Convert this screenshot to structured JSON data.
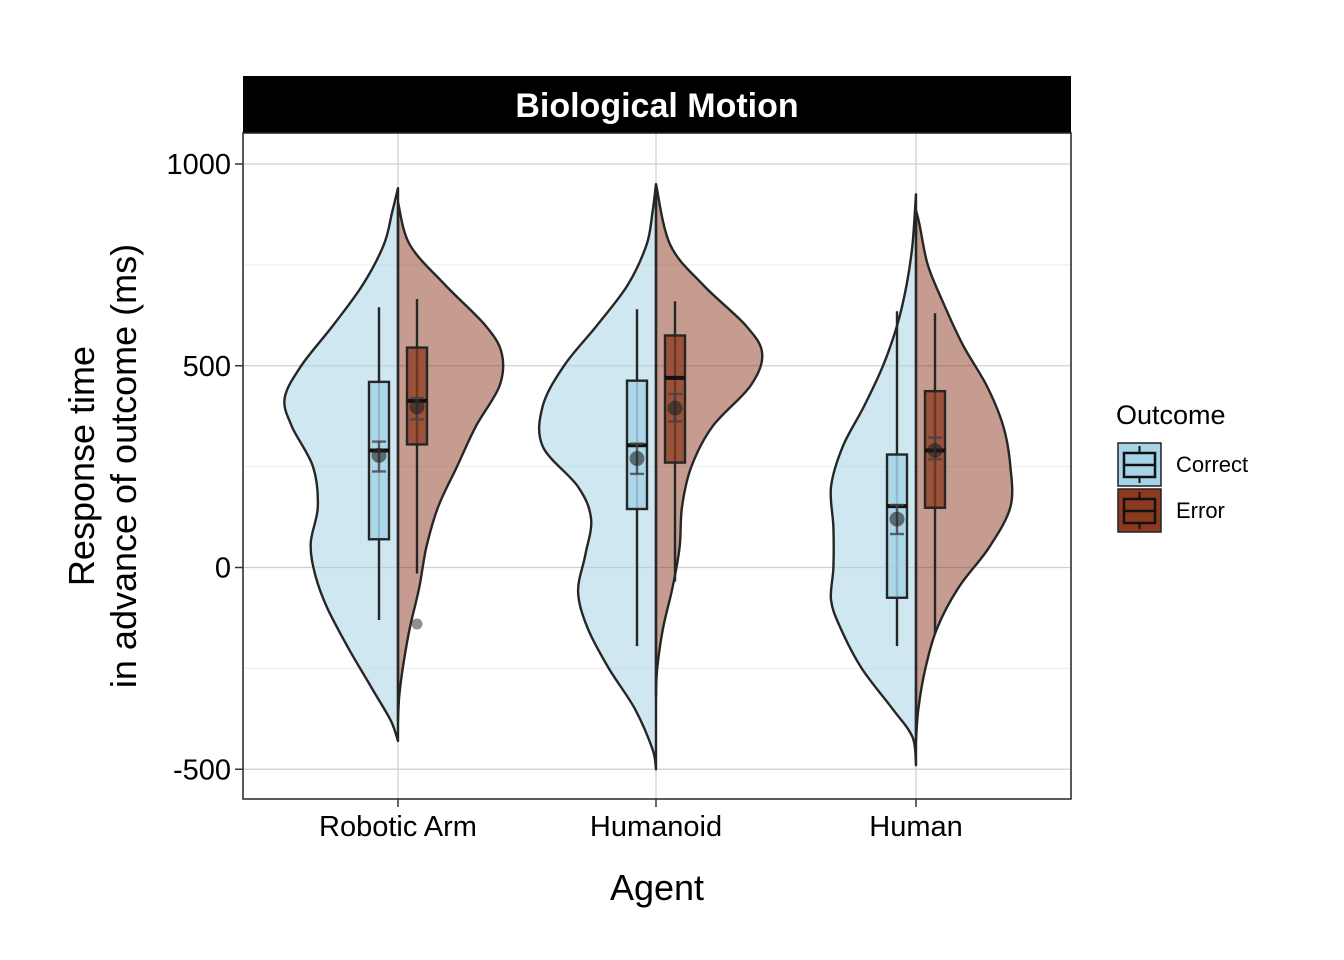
{
  "chart_data": {
    "type": "violin",
    "facet_title": "Biological Motion",
    "xlabel": "Agent",
    "ylabel_lines": [
      "Response time",
      "in advance of outcome (ms)"
    ],
    "ylim": [
      -560,
      1070
    ],
    "y_ticks": [
      -500,
      0,
      500,
      1000
    ],
    "y_tick_labels": [
      "-500",
      "0",
      "500",
      "1000"
    ],
    "categories": [
      "Robotic Arm",
      "Humanoid",
      "Human"
    ],
    "grid": true,
    "legend": {
      "title": "Outcome",
      "placement": "right",
      "entries": [
        "Correct",
        "Error"
      ]
    },
    "colors": {
      "Correct": "#a6d4e6",
      "Error": "#8b3a1f",
      "panel_border": "#222222",
      "grid": "#cccccc",
      "strip": "#000000"
    },
    "series": [
      {
        "name": "Correct",
        "side": "left",
        "groups": [
          {
            "category": "Robotic Arm",
            "density": [
              [
                -430,
                0.0
              ],
              [
                -380,
                0.06
              ],
              [
                -300,
                0.22
              ],
              [
                -200,
                0.42
              ],
              [
                -100,
                0.6
              ],
              [
                -20,
                0.7
              ],
              [
                60,
                0.74
              ],
              [
                150,
                0.68
              ],
              [
                250,
                0.72
              ],
              [
                350,
                0.9
              ],
              [
                420,
                0.96
              ],
              [
                500,
                0.82
              ],
              [
                600,
                0.55
              ],
              [
                700,
                0.3
              ],
              [
                800,
                0.12
              ],
              [
                880,
                0.05
              ],
              [
                940,
                0.0
              ]
            ],
            "box": {
              "q1": 70,
              "median": 290,
              "q3": 460,
              "lower": -130,
              "upper": 645
            },
            "mean": 278,
            "ci": [
              238,
              312
            ],
            "outliers": []
          },
          {
            "category": "Humanoid",
            "density": [
              [
                -500,
                0.0
              ],
              [
                -450,
                0.03
              ],
              [
                -350,
                0.18
              ],
              [
                -250,
                0.4
              ],
              [
                -150,
                0.58
              ],
              [
                -60,
                0.66
              ],
              [
                30,
                0.6
              ],
              [
                120,
                0.55
              ],
              [
                200,
                0.66
              ],
              [
                300,
                0.96
              ],
              [
                400,
                0.96
              ],
              [
                500,
                0.78
              ],
              [
                600,
                0.5
              ],
              [
                700,
                0.24
              ],
              [
                800,
                0.08
              ],
              [
                880,
                0.03
              ],
              [
                950,
                0.0
              ]
            ],
            "box": {
              "q1": 145,
              "median": 303,
              "q3": 463,
              "lower": -195,
              "upper": 640
            },
            "mean": 270,
            "ci": [
              232,
              307
            ],
            "outliers": []
          },
          {
            "category": "Human",
            "density": [
              [
                -490,
                0.0
              ],
              [
                -420,
                0.03
              ],
              [
                -350,
                0.2
              ],
              [
                -250,
                0.46
              ],
              [
                -150,
                0.64
              ],
              [
                -80,
                0.72
              ],
              [
                0,
                0.7
              ],
              [
                100,
                0.7
              ],
              [
                200,
                0.72
              ],
              [
                300,
                0.62
              ],
              [
                400,
                0.44
              ],
              [
                500,
                0.28
              ],
              [
                600,
                0.16
              ],
              [
                700,
                0.08
              ],
              [
                800,
                0.03
              ],
              [
                925,
                0.0
              ]
            ],
            "box": {
              "q1": -75,
              "median": 152,
              "q3": 280,
              "lower": -195,
              "upper": 635
            },
            "mean": 120,
            "ci": [
              83,
              155
            ],
            "outliers": []
          }
        ]
      },
      {
        "name": "Error",
        "side": "right",
        "groups": [
          {
            "category": "Robotic Arm",
            "density": [
              [
                -380,
                0.0
              ],
              [
                -320,
                0.01
              ],
              [
                -250,
                0.04
              ],
              [
                -150,
                0.1
              ],
              [
                -50,
                0.18
              ],
              [
                50,
                0.24
              ],
              [
                150,
                0.34
              ],
              [
                250,
                0.5
              ],
              [
                350,
                0.66
              ],
              [
                450,
                0.86
              ],
              [
                530,
                0.88
              ],
              [
                600,
                0.74
              ],
              [
                700,
                0.4
              ],
              [
                800,
                0.1
              ],
              [
                905,
                0.0
              ]
            ],
            "box": {
              "q1": 305,
              "median": 413,
              "q3": 545,
              "lower": -15,
              "upper": 665
            },
            "mean": 398,
            "ci": [
              367,
              420
            ],
            "outliers": [
              -140
            ]
          },
          {
            "category": "Humanoid",
            "density": [
              [
                -320,
                0.0
              ],
              [
                -250,
                0.01
              ],
              [
                -150,
                0.06
              ],
              [
                -50,
                0.14
              ],
              [
                50,
                0.2
              ],
              [
                150,
                0.22
              ],
              [
                250,
                0.3
              ],
              [
                350,
                0.48
              ],
              [
                450,
                0.8
              ],
              [
                530,
                0.9
              ],
              [
                600,
                0.76
              ],
              [
                700,
                0.4
              ],
              [
                800,
                0.12
              ],
              [
                950,
                0.0
              ]
            ],
            "box": {
              "q1": 260,
              "median": 470,
              "q3": 575,
              "lower": -35,
              "upper": 660
            },
            "mean": 395,
            "ci": [
              362,
              430
            ],
            "outliers": []
          },
          {
            "category": "Human",
            "density": [
              [
                -430,
                0.0
              ],
              [
                -350,
                0.02
              ],
              [
                -250,
                0.08
              ],
              [
                -150,
                0.18
              ],
              [
                -50,
                0.36
              ],
              [
                50,
                0.62
              ],
              [
                150,
                0.8
              ],
              [
                250,
                0.8
              ],
              [
                350,
                0.74
              ],
              [
                450,
                0.6
              ],
              [
                550,
                0.4
              ],
              [
                650,
                0.24
              ],
              [
                750,
                0.1
              ],
              [
                850,
                0.03
              ],
              [
                885,
                0.0
              ]
            ],
            "box": {
              "q1": 148,
              "median": 290,
              "q3": 437,
              "lower": -165,
              "upper": 630
            },
            "mean": 290,
            "ci": [
              268,
              322
            ],
            "outliers": []
          }
        ]
      }
    ]
  }
}
